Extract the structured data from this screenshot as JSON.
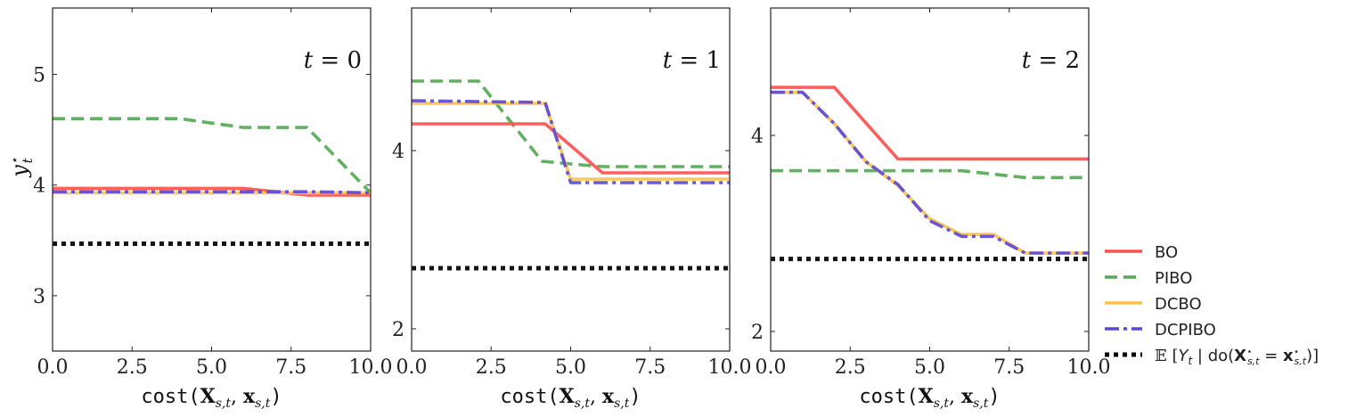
{
  "chart_data": [
    {
      "type": "line",
      "panel_label": "t = 0",
      "xlabel": "cost(X_{s,t}, x_{s,t})",
      "ylabel": "y*_t",
      "xlim": [
        0,
        10
      ],
      "ylim": [
        2.5,
        5.6
      ],
      "xticks": [
        0,
        2.5,
        5,
        7.5,
        10
      ],
      "xtick_labels": [
        "0.0",
        "2.5",
        "5.0",
        "7.5",
        "10.0"
      ],
      "yticks": [
        3,
        4,
        5
      ],
      "ytick_labels": [
        "3",
        "4",
        "5"
      ],
      "series": [
        {
          "name": "BO",
          "x": [
            0,
            6,
            8,
            10
          ],
          "y": [
            3.97,
            3.97,
            3.91,
            3.91
          ]
        },
        {
          "name": "PIBO",
          "x": [
            0,
            4,
            6,
            8,
            10
          ],
          "y": [
            4.6,
            4.6,
            4.52,
            4.52,
            3.93
          ]
        },
        {
          "name": "DCBO",
          "x": [
            0,
            10
          ],
          "y": [
            3.93,
            3.93
          ]
        },
        {
          "name": "DCPIBO",
          "x": [
            0,
            8,
            10
          ],
          "y": [
            3.94,
            3.94,
            3.93
          ]
        },
        {
          "name": "E[Y_t | do(X*_{s,t} = x*_{s,t})]",
          "x": [
            0,
            10
          ],
          "y": [
            3.47,
            3.47
          ]
        }
      ]
    },
    {
      "type": "line",
      "panel_label": "t = 1",
      "xlabel": "cost(X_{s,t}, x_{s,t})",
      "xlim": [
        0,
        10
      ],
      "ylim": [
        1.75,
        5.6
      ],
      "xticks": [
        0,
        2.5,
        5,
        7.5,
        10
      ],
      "xtick_labels": [
        "0.0",
        "2.5",
        "5.0",
        "7.5",
        "10.0"
      ],
      "yticks": [
        2,
        4
      ],
      "ytick_labels": [
        "2",
        "4"
      ],
      "series": [
        {
          "name": "BO",
          "x": [
            0,
            4.2,
            6,
            10
          ],
          "y": [
            4.3,
            4.3,
            3.75,
            3.75
          ]
        },
        {
          "name": "PIBO",
          "x": [
            0,
            2.1,
            4.1,
            5,
            6,
            10
          ],
          "y": [
            4.78,
            4.78,
            3.88,
            3.85,
            3.82,
            3.82
          ]
        },
        {
          "name": "DCBO",
          "x": [
            0,
            4.2,
            5,
            10
          ],
          "y": [
            4.53,
            4.53,
            3.68,
            3.68
          ]
        },
        {
          "name": "DCPIBO",
          "x": [
            0,
            4.2,
            5,
            10
          ],
          "y": [
            4.56,
            4.54,
            3.64,
            3.64
          ]
        },
        {
          "name": "E[Y_t | do(X*_{s,t} = x*_{s,t})]",
          "x": [
            0,
            10
          ],
          "y": [
            2.68,
            2.68
          ]
        }
      ]
    },
    {
      "type": "line",
      "panel_label": "t = 2",
      "xlabel": "cost(X_{s,t}, x_{s,t})",
      "xlim": [
        0,
        10
      ],
      "ylim": [
        1.8,
        5.3
      ],
      "xticks": [
        0,
        2.5,
        5,
        7.5,
        10
      ],
      "xtick_labels": [
        "0.0",
        "2.5",
        "5.0",
        "7.5",
        "10.0"
      ],
      "yticks": [
        2,
        4
      ],
      "ytick_labels": [
        "2",
        "4"
      ],
      "series": [
        {
          "name": "BO",
          "x": [
            0,
            2,
            4,
            10
          ],
          "y": [
            4.49,
            4.49,
            3.76,
            3.76
          ]
        },
        {
          "name": "PIBO",
          "x": [
            0,
            6,
            8,
            10
          ],
          "y": [
            3.64,
            3.64,
            3.57,
            3.57
          ]
        },
        {
          "name": "DCBO",
          "x": [
            0,
            1,
            2,
            3,
            4,
            5,
            6,
            7,
            8,
            10
          ],
          "y": [
            4.44,
            4.44,
            4.12,
            3.73,
            3.49,
            3.15,
            2.99,
            2.99,
            2.8,
            2.8
          ]
        },
        {
          "name": "DCPIBO",
          "x": [
            0,
            1,
            2,
            3,
            4,
            5,
            6,
            7,
            8,
            10
          ],
          "y": [
            4.44,
            4.44,
            4.12,
            3.73,
            3.5,
            3.13,
            2.97,
            2.97,
            2.8,
            2.8
          ]
        },
        {
          "name": "E[Y_t | do(X*_{s,t} = x*_{s,t})]",
          "x": [
            0,
            10
          ],
          "y": [
            2.74,
            2.74
          ]
        }
      ]
    }
  ],
  "styles": {
    "BO": {
      "color": "#FF5050",
      "dash": ""
    },
    "PIBO": {
      "color": "#55AA55",
      "dash": "14 7"
    },
    "DCBO": {
      "color": "#FFC14D",
      "dash": ""
    },
    "DCPIBO": {
      "color": "#5B47D6",
      "dash": "16 5 4 5"
    },
    "E[Y_t | do(X*_{s,t} = x*_{s,t})]": {
      "color": "#000000",
      "dash": "5 5"
    }
  },
  "legend": {
    "placement": "right",
    "entries": [
      "BO",
      "PIBO",
      "DCBO",
      "DCPIBO",
      "E[Y_t | do(X*_{s,t} = x*_{s,t})]"
    ]
  }
}
